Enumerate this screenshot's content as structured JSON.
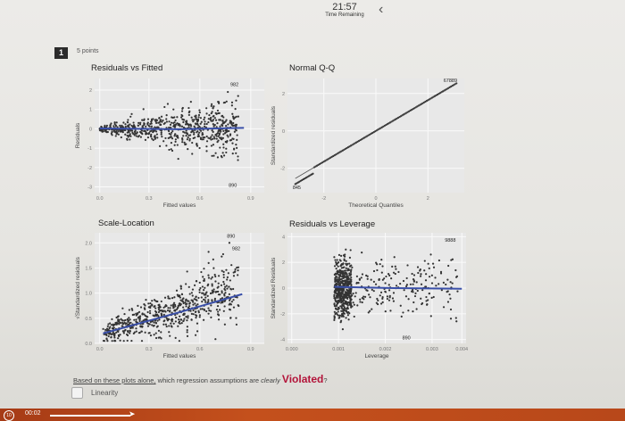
{
  "timer": {
    "time": "21:57",
    "label": "Time Remaining"
  },
  "question": {
    "number": "1",
    "points": "5 points",
    "text_prefix": "Based on these plots alone,",
    "text_mid": " which regression assumptions are ",
    "text_clearly": "clearly",
    "text_violated": "Violated",
    "text_end": "?",
    "option_1": "Linearity"
  },
  "taskbar": {
    "elapsed": "00:02"
  },
  "chart_data": [
    {
      "type": "scatter",
      "title": "Residuals vs Fitted",
      "xlabel": "Fitted values",
      "ylabel": "Residuals",
      "xticks": [
        "0.0",
        "0.3",
        "0.6",
        "0.9"
      ],
      "yticks": [
        "2",
        "1",
        "0",
        "-1",
        "-2",
        "-3"
      ],
      "xlim": [
        0,
        1
      ],
      "ylim": [
        -3.3,
        2.6
      ],
      "annotations": [
        "982",
        "890"
      ],
      "point_color": "#333333",
      "smooth_color": "#3a4fa8"
    },
    {
      "type": "line",
      "title": "Normal Q-Q",
      "xlabel": "Theoretical Quantiles",
      "ylabel": "Standardized residuals",
      "xticks": [
        "-2",
        "0",
        "2"
      ],
      "yticks": [
        "2",
        "0",
        "-2"
      ],
      "xlim": [
        -3.4,
        3.4
      ],
      "ylim": [
        -3.3,
        2.8
      ],
      "annotations": [
        "845",
        "67889"
      ]
    },
    {
      "type": "scatter",
      "title": "Scale-Location",
      "xlabel": "Fitted values",
      "ylabel": "√Standardized residuals",
      "xticks": [
        "0.0",
        "0.3",
        "0.6",
        "0.9"
      ],
      "yticks": [
        "2.0",
        "1.5",
        "1.0",
        "0.5",
        "0.0"
      ],
      "xlim": [
        0,
        1
      ],
      "ylim": [
        0,
        2.2
      ],
      "annotations": [
        "890",
        "982"
      ]
    },
    {
      "type": "scatter",
      "title": "Residuals vs Leverage",
      "xlabel": "Leverage",
      "ylabel": "Standardized Residuals",
      "xticks": [
        "0.000",
        "0.001",
        "0.002",
        "0.003",
        "0.004"
      ],
      "yticks": [
        "4",
        "2",
        "0",
        "-2",
        "-4"
      ],
      "xlim": [
        0,
        0.0042
      ],
      "ylim": [
        -4.3,
        4.3
      ],
      "annotations": [
        "9888",
        "890"
      ]
    }
  ]
}
